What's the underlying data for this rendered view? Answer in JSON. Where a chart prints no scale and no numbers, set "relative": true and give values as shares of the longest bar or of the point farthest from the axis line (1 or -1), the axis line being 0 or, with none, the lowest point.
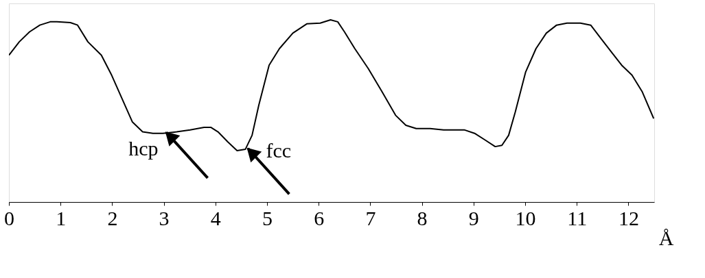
{
  "chart_data": {
    "type": "line",
    "relative": true,
    "xlabel": "Å",
    "xlim": [
      0,
      12.5
    ],
    "xticks": [
      0,
      1,
      2,
      3,
      4,
      5,
      6,
      7,
      8,
      9,
      10,
      11,
      12
    ],
    "grid": false,
    "legend": false,
    "marker": "none",
    "line_style": "solid",
    "x": [
      0,
      0.2,
      0.4,
      0.6,
      0.8,
      0.93,
      1.19,
      1.33,
      1.53,
      1.79,
      1.99,
      2.19,
      2.39,
      2.59,
      2.79,
      2.98,
      3.25,
      3.51,
      3.78,
      3.91,
      4.05,
      4.24,
      4.42,
      4.58,
      4.71,
      4.84,
      5.04,
      5.24,
      5.5,
      5.77,
      6.03,
      6.23,
      6.37,
      6.5,
      6.7,
      6.96,
      7.23,
      7.49,
      7.69,
      7.89,
      8.16,
      8.42,
      8.82,
      9.02,
      9.22,
      9.42,
      9.55,
      9.68,
      9.81,
      10.01,
      10.21,
      10.41,
      10.61,
      10.81,
      11.07,
      11.27,
      11.47,
      11.67,
      11.87,
      12.07,
      12.27,
      12.49
    ],
    "series": [
      {
        "color": "#000000",
        "values": [
          0.806,
          0.879,
          0.934,
          0.971,
          0.989,
          0.989,
          0.985,
          0.971,
          0.879,
          0.806,
          0.696,
          0.568,
          0.44,
          0.385,
          0.377,
          0.377,
          0.385,
          0.396,
          0.41,
          0.41,
          0.385,
          0.33,
          0.282,
          0.289,
          0.366,
          0.531,
          0.751,
          0.842,
          0.927,
          0.978,
          0.982,
          1.0,
          0.989,
          0.934,
          0.842,
          0.733,
          0.604,
          0.476,
          0.421,
          0.403,
          0.403,
          0.396,
          0.396,
          0.377,
          0.341,
          0.304,
          0.311,
          0.366,
          0.495,
          0.714,
          0.842,
          0.927,
          0.971,
          0.982,
          0.982,
          0.971,
          0.897,
          0.824,
          0.751,
          0.696,
          0.604,
          0.458
        ]
      }
    ],
    "annotations": [
      {
        "text": "hcp",
        "x": 3.0,
        "y": 0.377
      },
      {
        "text": "fcc",
        "x": 4.58,
        "y": 0.289
      }
    ]
  }
}
